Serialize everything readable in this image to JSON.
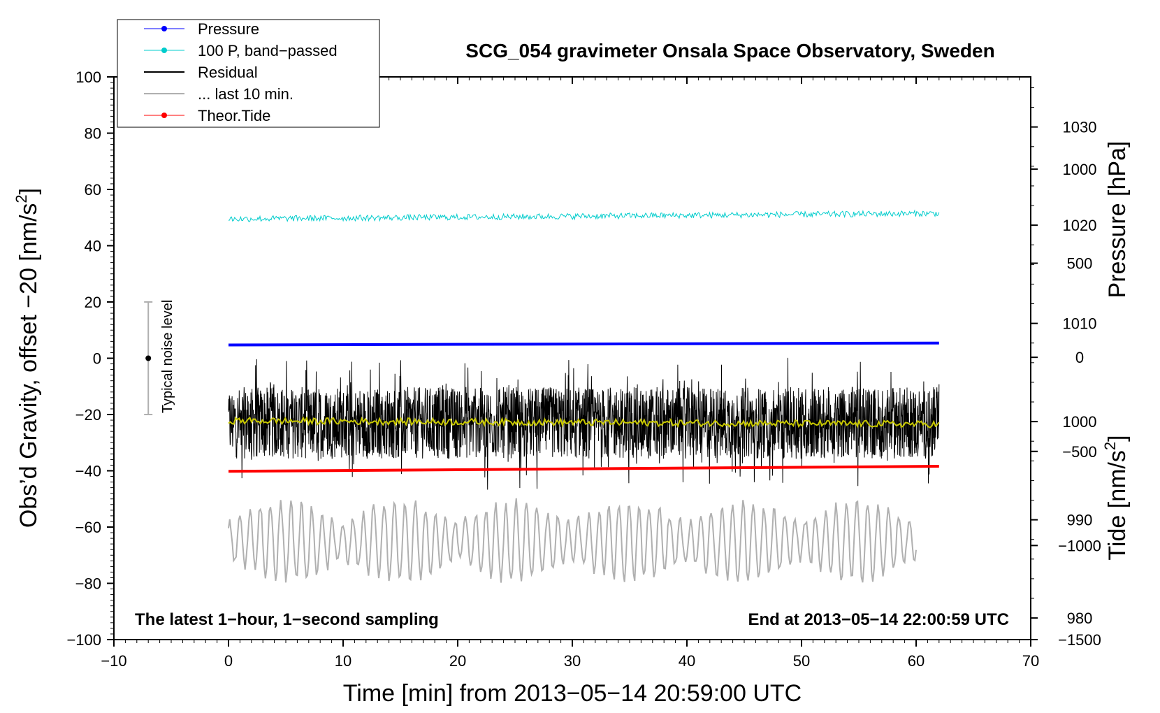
{
  "chart_data": {
    "type": "line",
    "title": "SCG_054 gravimeter Onsala Space Observatory, Sweden",
    "xlabel": "Time [min] from 2013−05−14 20:59:00 UTC",
    "ylabel_left_main": "Obs’d Gravity, offset −20 [nm/s",
    "ylabel_left_sup": "2",
    "ylabel_left_end": "]",
    "ylabel_right_pressure": "Pressure [hPa]",
    "ylabel_right_tide_main": "Tide [nm/s",
    "ylabel_right_tide_sup": "2",
    "ylabel_right_tide_end": "]",
    "xlim": [
      -10,
      70
    ],
    "ylim": [
      -100,
      100
    ],
    "pressure_ylim": [
      977.8,
      1035.1
    ],
    "tide_ylim": [
      -1500,
      1490
    ],
    "x_ticks": [
      "−10",
      "0",
      "10",
      "20",
      "30",
      "40",
      "50",
      "60",
      "70"
    ],
    "y_ticks": [
      "100",
      "80",
      "60",
      "40",
      "20",
      "0",
      "−20",
      "−40",
      "−60",
      "−80",
      "−100"
    ],
    "pressure_ticks": [
      "1030",
      "1020",
      "1010",
      "1000",
      "990",
      "980"
    ],
    "tide_ticks": [
      "1000",
      "500",
      "0",
      "−500",
      "−1000",
      "−1500"
    ],
    "bottom_left_note": "The latest 1−hour, 1−second sampling",
    "bottom_right_note": "End at 2013−05−14 22:00:59 UTC",
    "noise_label": "Typical noise level",
    "noise_bar": {
      "x": -7,
      "center": 0,
      "low": -20,
      "high": 20
    },
    "legend": [
      {
        "label": "Pressure",
        "color": "#0000ff",
        "marker": true
      },
      {
        "label": "100 P, band−passed",
        "color": "#00cccc",
        "marker": true
      },
      {
        "label": "Residual",
        "color": "#000000",
        "marker": false
      },
      {
        "label": "... last 10 min.",
        "color": "#b0b0b0",
        "marker": false
      },
      {
        "label": "Theor.Tide",
        "color": "#ff0000",
        "marker": true
      }
    ],
    "series": [
      {
        "name": "Pressure",
        "color": "#0000ff",
        "axis": "pressure",
        "x": [
          0,
          62
        ],
        "y": [
          1007.8,
          1008.0
        ]
      },
      {
        "name": "100 P, band−passed",
        "color": "#00cccc",
        "axis": "left",
        "x": [
          0,
          62
        ],
        "mean": [
          49.5,
          51.5
        ],
        "amplitude": 1.5
      },
      {
        "name": "Residual",
        "color": "#000000",
        "axis": "left",
        "x": [
          0,
          62
        ],
        "mean": -23,
        "amplitude": 17,
        "min": -47,
        "max": 1
      },
      {
        "name": "Residual smoothed",
        "color": "#c8c800",
        "axis": "left",
        "x": [
          0,
          62
        ],
        "mean": -23,
        "amplitude": 1.2
      },
      {
        "name": "... last 10 min.",
        "color": "#b0b0b0",
        "axis": "left",
        "x": [
          0,
          60
        ],
        "mean": -65,
        "amplitude": 14,
        "min": -83,
        "max": -42
      },
      {
        "name": "Theor.Tide",
        "color": "#ff0000",
        "axis": "left",
        "x": [
          0,
          62
        ],
        "y": [
          -40.2,
          -38.4
        ]
      }
    ]
  }
}
